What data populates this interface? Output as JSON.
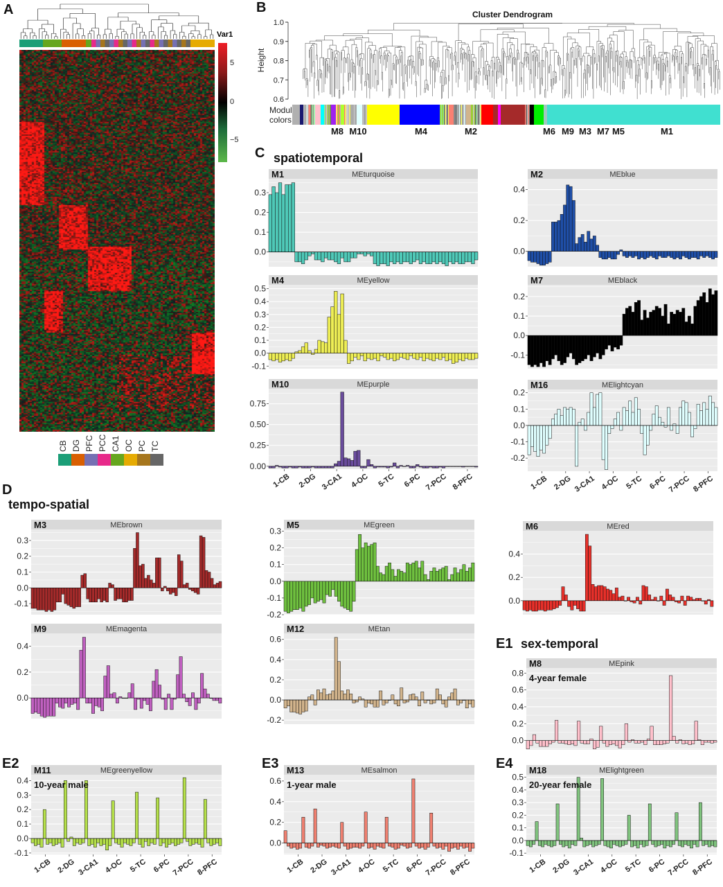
{
  "panel_labels": {
    "A": "A",
    "B": "B",
    "C": "C",
    "D": "D",
    "E1": "E1",
    "E2": "E2",
    "E3": "E3",
    "E4": "E4"
  },
  "sections": {
    "C": "spatiotemporal",
    "D": "tempo-spatial",
    "E1": "sex-temporal"
  },
  "heatmap": {
    "legend_title": "Var1",
    "legend_ticks": [
      "5",
      "0",
      "−5"
    ],
    "regions": [
      {
        "name": "CB",
        "color": "#1b9e77"
      },
      {
        "name": "DG",
        "color": "#d95f02"
      },
      {
        "name": "PFC",
        "color": "#7570b3"
      },
      {
        "name": "PCC",
        "color": "#e7298a"
      },
      {
        "name": "CA1",
        "color": "#66a61e"
      },
      {
        "name": "OC",
        "color": "#e6ab02"
      },
      {
        "name": "PC",
        "color": "#a6761d"
      },
      {
        "name": "TC",
        "color": "#666666"
      }
    ]
  },
  "dendrogram": {
    "title": "Cluster Dendrogram",
    "ylabel": "Height",
    "yticks": [
      "1.0",
      "0.9",
      "0.8",
      "0.7",
      "0.6"
    ],
    "module_colors_label": [
      "Module",
      "colors"
    ],
    "modules": [
      "M8",
      "M10",
      "M4",
      "M2",
      "M6",
      "M9",
      "M3",
      "M7",
      "M5",
      "M1"
    ]
  },
  "x_labels": [
    "1-CB",
    "2-DG",
    "3-CA1",
    "4-OC",
    "5-TC",
    "6-PC",
    "7-PCC",
    "8-PFC"
  ],
  "chart_data": [
    {
      "type": "bar",
      "module": "M1",
      "title": "MEturquoise",
      "color": "#4fc9b8",
      "ylim": [
        -0.075,
        0.37
      ],
      "yticks": [
        "0.3",
        "0.2",
        "0.1",
        "0.0"
      ],
      "values": [
        0.29,
        0.33,
        0.3,
        0.35,
        0.29,
        0.34,
        0.34,
        0.35,
        -0.05,
        -0.05,
        -0.06,
        -0.04,
        -0.02,
        -0.01,
        -0.04,
        -0.04,
        -0.05,
        -0.03,
        -0.04,
        -0.04,
        -0.05,
        -0.06,
        -0.03,
        -0.05,
        -0.05,
        -0.03,
        -0.03,
        -0.01,
        -0.01,
        -0.02,
        -0.01,
        -0.02,
        -0.06,
        -0.07,
        -0.06,
        -0.06,
        -0.07,
        -0.05,
        -0.06,
        -0.05,
        -0.06,
        -0.05,
        -0.05,
        -0.06,
        -0.05,
        -0.04,
        -0.06,
        -0.05,
        -0.06,
        -0.06,
        -0.05,
        -0.06,
        -0.05,
        -0.06,
        -0.07,
        -0.05,
        -0.06,
        -0.05,
        -0.06,
        -0.06,
        -0.05,
        -0.05,
        -0.06,
        -0.04
      ]
    },
    {
      "type": "bar",
      "module": "M2",
      "title": "MEblue",
      "color": "#1f4fa8",
      "ylim": [
        -0.1,
        0.47
      ],
      "yticks": [
        "0.4",
        "0.2",
        "0.0"
      ],
      "values": [
        -0.06,
        -0.07,
        -0.07,
        -0.08,
        -0.09,
        -0.09,
        -0.08,
        -0.07,
        0.19,
        0.19,
        0.2,
        0.24,
        0.3,
        0.43,
        0.42,
        0.33,
        0.05,
        0.09,
        0.11,
        0.06,
        0.13,
        0.08,
        0.1,
        0.04,
        -0.04,
        -0.05,
        -0.05,
        -0.04,
        -0.05,
        -0.05,
        -0.02,
        0.01,
        -0.03,
        -0.04,
        -0.03,
        -0.04,
        -0.03,
        -0.05,
        -0.04,
        -0.05,
        -0.04,
        -0.03,
        -0.04,
        -0.05,
        -0.03,
        -0.04,
        -0.04,
        -0.03,
        -0.04,
        -0.05,
        -0.04,
        -0.05,
        -0.03,
        -0.04,
        -0.05,
        -0.04,
        -0.04,
        -0.05,
        -0.03,
        -0.04,
        -0.03,
        -0.04,
        -0.05,
        -0.04
      ]
    },
    {
      "type": "bar",
      "module": "M4",
      "title": "MEyellow",
      "color": "#eeee55",
      "ylim": [
        -0.12,
        0.53
      ],
      "yticks": [
        "0.5",
        "0.4",
        "0.3",
        "0.2",
        "0.1",
        "0.0",
        "-0.1"
      ],
      "values": [
        -0.05,
        -0.06,
        -0.05,
        -0.07,
        -0.06,
        -0.05,
        -0.06,
        -0.04,
        0.01,
        0.02,
        0.05,
        0.08,
        0.02,
        -0.01,
        0.03,
        0.1,
        0.09,
        0.08,
        0.28,
        0.36,
        0.48,
        0.3,
        0.46,
        0.1,
        -0.08,
        -0.06,
        -0.03,
        -0.05,
        -0.02,
        -0.06,
        -0.04,
        -0.05,
        -0.04,
        -0.06,
        -0.02,
        -0.03,
        -0.05,
        -0.04,
        -0.06,
        -0.05,
        -0.03,
        -0.04,
        -0.05,
        -0.02,
        -0.04,
        -0.05,
        -0.03,
        -0.06,
        -0.04,
        -0.05,
        -0.06,
        -0.04,
        -0.05,
        -0.03,
        -0.06,
        -0.05,
        -0.08,
        -0.07,
        -0.05,
        -0.06,
        -0.04,
        -0.05,
        -0.05,
        -0.04
      ]
    },
    {
      "type": "bar",
      "module": "M7",
      "title": "MEblack",
      "color": "#000000",
      "ylim": [
        -0.17,
        0.26
      ],
      "yticks": [
        "0.2",
        "0.1",
        "0.0",
        "-0.1"
      ],
      "values": [
        -0.15,
        -0.16,
        -0.15,
        -0.16,
        -0.14,
        -0.16,
        -0.13,
        -0.15,
        -0.12,
        -0.1,
        -0.13,
        -0.15,
        -0.14,
        -0.11,
        -0.09,
        -0.12,
        -0.15,
        -0.14,
        -0.13,
        -0.12,
        -0.1,
        -0.13,
        -0.11,
        -0.09,
        -0.12,
        -0.1,
        -0.07,
        -0.05,
        -0.08,
        -0.06,
        -0.07,
        -0.05,
        0.11,
        0.14,
        0.15,
        0.12,
        0.17,
        0.18,
        0.08,
        0.13,
        0.09,
        0.12,
        0.13,
        0.15,
        0.14,
        0.1,
        0.16,
        0.06,
        0.12,
        0.11,
        0.13,
        0.12,
        0.14,
        0.07,
        0.1,
        0.06,
        0.15,
        0.18,
        0.2,
        0.22,
        0.17,
        0.24,
        0.21,
        0.23
      ]
    },
    {
      "type": "bar",
      "module": "M10",
      "title": "MEpurple",
      "color": "#6a4c9c",
      "ylim": [
        -0.035,
        0.93
      ],
      "yticks": [
        "0.75",
        "0.50",
        "0.25",
        "0.00"
      ],
      "x_axis": true,
      "values": [
        -0.02,
        -0.02,
        0.01,
        -0.01,
        -0.02,
        -0.02,
        -0.01,
        -0.02,
        -0.02,
        -0.01,
        -0.02,
        -0.02,
        -0.02,
        -0.01,
        -0.02,
        -0.02,
        -0.02,
        -0.02,
        -0.02,
        -0.02,
        0.03,
        0.06,
        0.89,
        0.1,
        0.09,
        0.07,
        0.18,
        0.19,
        -0.02,
        -0.02,
        0.08,
        0.02,
        -0.02,
        -0.01,
        -0.01,
        -0.01,
        -0.02,
        -0.01,
        0.04,
        -0.02,
        0.01,
        0.0,
        0.01,
        -0.02,
        -0.02,
        0.02,
        -0.01,
        -0.02,
        -0.02,
        -0.01,
        -0.02,
        -0.02,
        -0.01,
        -0.02,
        0.0,
        0.0,
        0.0,
        0.0,
        0.0,
        -0.01,
        0.0,
        0.0,
        0.0,
        -0.01
      ]
    },
    {
      "type": "bar",
      "module": "M16",
      "title": "MElightcyan",
      "color": "#e0ffff",
      "ylim": [
        -0.28,
        0.22
      ],
      "yticks": [
        "0.2",
        "0.1",
        "0.0",
        "-0.1",
        "-0.2"
      ],
      "x_axis": true,
      "values": [
        -0.18,
        -0.13,
        -0.16,
        -0.19,
        -0.15,
        -0.17,
        -0.12,
        -0.08,
        0.04,
        0.07,
        0.1,
        0.06,
        0.11,
        0.1,
        0.11,
        0.1,
        -0.25,
        0.02,
        0.04,
        -0.03,
        0.08,
        0.2,
        0.11,
        0.19,
        0.2,
        -0.21,
        -0.27,
        -0.05,
        -0.02,
        0.04,
        0.08,
        -0.03,
        0.11,
        0.09,
        0.15,
        0.08,
        0.17,
        0.1,
        -0.05,
        -0.18,
        -0.12,
        -0.03,
        0.07,
        0.12,
        0.05,
        0.02,
        -0.01,
        0.11,
        -0.03,
        0.01,
        -0.05,
        0.11,
        0.15,
        0.14,
        0.08,
        -0.07,
        -0.02,
        0.13,
        0.09,
        0.14,
        0.1,
        0.18,
        0.14,
        0.11
      ]
    },
    {
      "type": "bar",
      "module": "M3",
      "title": "MEbrown",
      "color": "#a52a2a",
      "ylim": [
        -0.17,
        0.37
      ],
      "yticks": [
        "0.3",
        "0.2",
        "0.1",
        "0.0",
        "-0.1"
      ],
      "values": [
        -0.13,
        -0.13,
        -0.14,
        -0.14,
        -0.14,
        -0.15,
        -0.14,
        -0.15,
        -0.14,
        -0.09,
        -0.09,
        -0.04,
        -0.1,
        -0.11,
        -0.12,
        -0.13,
        -0.12,
        -0.12,
        0.08,
        0.09,
        -0.07,
        -0.09,
        -0.09,
        -0.09,
        -0.07,
        -0.09,
        -0.08,
        -0.09,
        0.03,
        0.02,
        -0.08,
        -0.07,
        -0.07,
        -0.09,
        -0.09,
        -0.08,
        -0.08,
        0.25,
        0.35,
        0.14,
        0.15,
        0.06,
        0.08,
        0.05,
        0.03,
        0.19,
        0.19,
        -0.02,
        0.01,
        -0.02,
        -0.04,
        -0.03,
        -0.05,
        0.21,
        0.17,
        0.02,
        0.03,
        -0.01,
        -0.02,
        -0.03,
        -0.04,
        0.33,
        0.32,
        0.11,
        0.1,
        0.06,
        0.02,
        0.03,
        0.04
      ]
    },
    {
      "type": "bar",
      "module": "M5",
      "title": "MEgreen",
      "color": "#6fc13f",
      "ylim": [
        -0.2,
        0.31
      ],
      "yticks": [
        "0.3",
        "0.2",
        "0.1",
        "0.0",
        "-0.1",
        "-0.2"
      ],
      "values": [
        -0.18,
        -0.19,
        -0.18,
        -0.17,
        -0.17,
        -0.16,
        -0.18,
        -0.15,
        -0.14,
        -0.1,
        -0.13,
        -0.12,
        -0.11,
        -0.13,
        -0.08,
        -0.09,
        -0.05,
        -0.09,
        -0.12,
        -0.15,
        -0.16,
        -0.17,
        -0.18,
        -0.12,
        0.19,
        0.28,
        0.2,
        0.23,
        0.21,
        0.22,
        0.23,
        0.09,
        0.05,
        0.04,
        0.09,
        0.11,
        0.07,
        0.03,
        0.07,
        0.06,
        0.05,
        0.11,
        0.1,
        0.11,
        0.12,
        0.08,
        0.12,
        0.04,
        0.01,
        0.06,
        0.08,
        0.06,
        0.07,
        0.08,
        0.09,
        0.01,
        0.04,
        0.08,
        0.05,
        0.07,
        0.1,
        0.06,
        0.08,
        0.11
      ]
    },
    {
      "type": "bar",
      "module": "M6",
      "title": "MEred",
      "color": "#e8302a",
      "ylim": [
        -0.12,
        0.6
      ],
      "yticks": [
        "0.4",
        "0.2",
        "0.0"
      ],
      "values": [
        -0.08,
        -0.09,
        -0.08,
        -0.09,
        -0.09,
        -0.08,
        -0.08,
        -0.09,
        -0.08,
        -0.08,
        -0.07,
        -0.06,
        -0.04,
        0.12,
        0.05,
        -0.05,
        -0.08,
        -0.04,
        -0.07,
        -0.09,
        -0.09,
        0.57,
        0.47,
        0.14,
        0.12,
        0.13,
        0.13,
        0.12,
        0.1,
        0.09,
        0.06,
        0.11,
        0.03,
        0.04,
        0.0,
        0.03,
        -0.01,
        -0.02,
        0.03,
        -0.03,
        0.13,
        0.12,
        0.05,
        0.01,
        0.03,
        0.0,
        0.04,
        -0.04,
        0.1,
        0.05,
        0.03,
        -0.01,
        -0.02,
        0.04,
        -0.04,
        0.04,
        0.03,
        0.01,
        0.02,
        0.02,
        0.0,
        -0.03,
        0.01,
        -0.05
      ]
    },
    {
      "type": "bar",
      "module": "M9",
      "title": "MEmagenta",
      "color": "#c060c0",
      "ylim": [
        -0.16,
        0.5
      ],
      "yticks": [
        "0.4",
        "0.2",
        "0.0"
      ],
      "values": [
        -0.12,
        -0.11,
        -0.12,
        -0.14,
        -0.15,
        -0.14,
        -0.14,
        -0.14,
        -0.04,
        -0.07,
        -0.08,
        -0.04,
        -0.07,
        -0.05,
        -0.04,
        -0.09,
        0.37,
        0.47,
        -0.04,
        -0.04,
        -0.12,
        -0.06,
        -0.07,
        -0.1,
        0.17,
        0.25,
        0.03,
        0.04,
        -0.04,
        0.01,
        0.0,
        0.0,
        0.04,
        0.11,
        -0.09,
        -0.01,
        -0.08,
        -0.02,
        -0.05,
        -0.1,
        0.13,
        0.22,
        0.1,
        -0.01,
        -0.09,
        0.03,
        -0.09,
        -0.01,
        0.18,
        0.32,
        0.03,
        -0.03,
        -0.06,
        0.04,
        -0.09,
        -0.04,
        0.19,
        0.07,
        0.03,
        0.0,
        -0.02,
        -0.02,
        -0.04
      ]
    },
    {
      "type": "bar",
      "module": "M12",
      "title": "MEtan",
      "color": "#d2b48c",
      "ylim": [
        -0.24,
        0.66
      ],
      "yticks": [
        "0.6",
        "0.4",
        "0.2",
        "0.0",
        "-0.2"
      ],
      "values": [
        -0.08,
        -0.06,
        -0.12,
        -0.12,
        -0.13,
        -0.14,
        -0.12,
        -0.11,
        0.03,
        0.05,
        -0.05,
        0.1,
        0.07,
        0.11,
        0.05,
        0.06,
        0.09,
        0.62,
        0.38,
        0.09,
        0.06,
        0.1,
        0.06,
        -0.03,
        -0.02,
        0.03,
        0.01,
        -0.07,
        -0.03,
        -0.04,
        -0.07,
        -0.07,
        0.09,
        -0.05,
        -0.03,
        0.0,
        0.05,
        -0.04,
        -0.06,
        0.12,
        -0.03,
        -0.02,
        0.05,
        0.06,
        0.03,
        -0.06,
        0.08,
        -0.03,
        0.0,
        -0.04,
        -0.03,
        0.11,
        0.05,
        -0.04,
        -0.07,
        0.03,
        0.07,
        0.11,
        -0.05,
        -0.03,
        0.0,
        -0.08,
        -0.04,
        -0.07
      ]
    },
    {
      "type": "bar",
      "module": "M8",
      "title": "MEpink",
      "color": "#ffc0cb",
      "ylim": [
        -0.11,
        0.86
      ],
      "yticks": [
        "0.8",
        "0.6",
        "0.4",
        "0.2",
        "0.0"
      ],
      "annotation": "4-year female",
      "values": [
        -0.1,
        -0.06,
        0.07,
        -0.03,
        -0.07,
        -0.07,
        -0.07,
        -0.04,
        -0.02,
        0.24,
        -0.03,
        -0.03,
        -0.04,
        -0.05,
        -0.04,
        -0.06,
        0.23,
        -0.03,
        -0.04,
        -0.04,
        0.02,
        -0.1,
        -0.08,
        0.17,
        -0.03,
        -0.07,
        -0.05,
        -0.04,
        -0.06,
        -0.09,
        -0.05,
        0.2,
        -0.02,
        0.01,
        -0.03,
        -0.03,
        -0.02,
        -0.05,
        0.02,
        0.17,
        -0.05,
        -0.05,
        -0.05,
        -0.04,
        -0.03,
        0.77,
        0.05,
        -0.03,
        0.01,
        -0.04,
        -0.03,
        -0.05,
        -0.04,
        0.23,
        0.01,
        -0.05,
        -0.02,
        -0.02,
        -0.03,
        -0.02
      ]
    },
    {
      "type": "bar",
      "module": "M11",
      "title": "MEgreenyellow",
      "color": "#b5e04a",
      "ylim": [
        -0.11,
        0.44
      ],
      "yticks": [
        "0.4",
        "0.3",
        "0.2",
        "0.1",
        "0.0",
        "-0.1"
      ],
      "annotation": "10-year male",
      "x_axis": true,
      "values": [
        -0.03,
        -0.05,
        -0.04,
        -0.06,
        0.2,
        -0.04,
        -0.03,
        -0.05,
        -0.04,
        -0.03,
        -0.06,
        0.4,
        -0.02,
        0.01,
        -0.05,
        -0.03,
        -0.04,
        -0.03,
        0.4,
        -0.05,
        -0.04,
        -0.06,
        -0.03,
        -0.05,
        -0.04,
        -0.08,
        -0.05,
        0.26,
        -0.03,
        -0.04,
        -0.06,
        -0.03,
        -0.04,
        -0.05,
        -0.03,
        0.32,
        -0.04,
        -0.06,
        -0.02,
        -0.05,
        -0.03,
        -0.04,
        0.28,
        -0.05,
        -0.03,
        -0.06,
        -0.04,
        -0.03,
        -0.05,
        -0.04,
        -0.03,
        0.42,
        -0.02,
        -0.05,
        -0.04,
        -0.03,
        -0.04,
        -0.06,
        0.27,
        -0.03,
        -0.05,
        -0.04,
        -0.03,
        -0.05
      ]
    },
    {
      "type": "bar",
      "module": "M13",
      "title": "MEsalmon",
      "color": "#f08070",
      "ylim": [
        -0.11,
        0.66
      ],
      "yticks": [
        "0.6",
        "0.4",
        "0.2",
        "0.0"
      ],
      "annotation": "1-year male",
      "x_axis": true,
      "values": [
        0.12,
        -0.03,
        -0.05,
        -0.04,
        -0.06,
        -0.05,
        0.25,
        -0.04,
        -0.05,
        -0.03,
        0.33,
        -0.04,
        -0.02,
        -0.03,
        -0.05,
        -0.04,
        -0.03,
        -0.04,
        -0.05,
        0.2,
        -0.03,
        -0.06,
        -0.05,
        -0.04,
        -0.04,
        -0.05,
        -0.03,
        0.3,
        -0.05,
        -0.04,
        -0.06,
        -0.03,
        -0.04,
        -0.05,
        0.25,
        -0.03,
        -0.04,
        -0.06,
        -0.05,
        -0.02,
        -0.03,
        -0.05,
        -0.04,
        0.62,
        -0.03,
        -0.05,
        -0.04,
        -0.06,
        -0.04,
        0.29,
        -0.03,
        -0.05,
        -0.04,
        -0.06,
        -0.03,
        -0.08,
        -0.05,
        -0.04,
        -0.06,
        -0.03,
        -0.05,
        -0.04,
        -0.08,
        -0.05
      ]
    },
    {
      "type": "bar",
      "module": "M18",
      "title": "MElightgreen",
      "color": "#80c47e",
      "ylim": [
        -0.11,
        0.52
      ],
      "yticks": [
        "0.5",
        "0.4",
        "0.3",
        "0.2",
        "0.1",
        "0.0",
        "-0.1"
      ],
      "annotation": "20-year female",
      "x_axis": true,
      "values": [
        -0.04,
        -0.05,
        -0.03,
        0.15,
        -0.04,
        -0.05,
        -0.03,
        -0.04,
        -0.05,
        -0.04,
        0.29,
        -0.03,
        -0.05,
        -0.04,
        -0.06,
        -0.03,
        -0.04,
        0.5,
        0.02,
        -0.05,
        -0.04,
        -0.03,
        -0.05,
        -0.04,
        -0.03,
        0.49,
        -0.04,
        -0.05,
        -0.06,
        -0.03,
        -0.04,
        -0.05,
        -0.04,
        -0.03,
        0.2,
        -0.05,
        -0.04,
        -0.06,
        -0.03,
        -0.05,
        -0.04,
        0.29,
        -0.03,
        -0.05,
        -0.04,
        -0.03,
        -0.06,
        -0.04,
        -0.05,
        -0.03,
        0.22,
        -0.04,
        -0.05,
        -0.03,
        -0.04,
        -0.06,
        -0.03,
        -0.05,
        0.3,
        -0.04,
        -0.03,
        -0.05,
        -0.04,
        -0.05
      ]
    }
  ]
}
